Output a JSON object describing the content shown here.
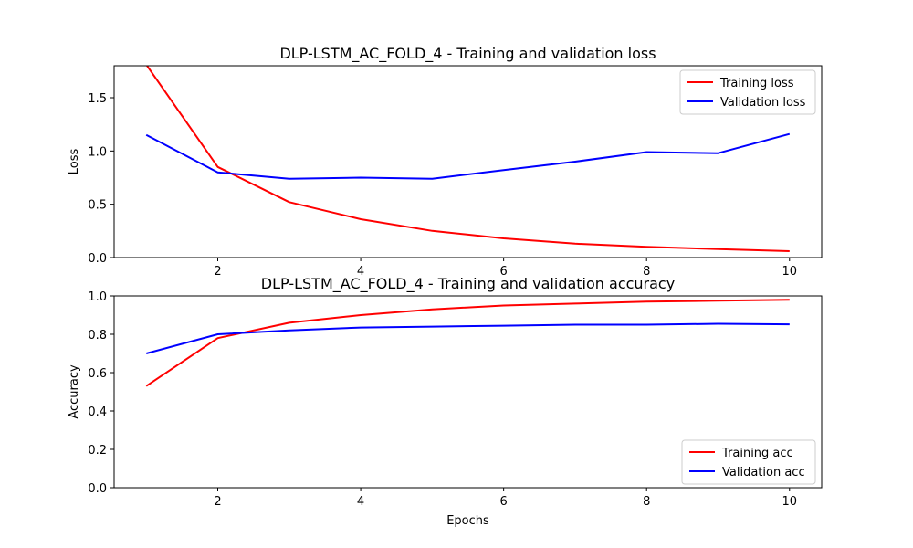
{
  "chart_data": [
    {
      "type": "line",
      "title": "DLP-LSTM_AC_FOLD_4 - Training and validation loss",
      "xlabel": "",
      "ylabel": "Loss",
      "x": [
        1,
        2,
        3,
        4,
        5,
        6,
        7,
        8,
        9,
        10
      ],
      "xlim": [
        0.55,
        10.45
      ],
      "ylim": [
        0,
        1.8
      ],
      "xticks": [
        2,
        4,
        6,
        8,
        10
      ],
      "yticks": [
        0.0,
        0.5,
        1.0,
        1.5
      ],
      "ytick_labels": [
        "0.0",
        "0.5",
        "1.0",
        "1.5"
      ],
      "xtick_labels": [
        "2",
        "4",
        "6",
        "8",
        "10"
      ],
      "legend_position": "top-right",
      "grid": false,
      "series": [
        {
          "name": "Training loss",
          "color": "#ff0000",
          "values": [
            1.81,
            0.85,
            0.52,
            0.36,
            0.25,
            0.18,
            0.13,
            0.1,
            0.08,
            0.06
          ]
        },
        {
          "name": "Validation loss",
          "color": "#0000ff",
          "values": [
            1.15,
            0.8,
            0.74,
            0.75,
            0.74,
            0.82,
            0.9,
            0.99,
            0.98,
            1.16
          ]
        }
      ]
    },
    {
      "type": "line",
      "title": "DLP-LSTM_AC_FOLD_4 - Training and validation accuracy",
      "xlabel": "Epochs",
      "ylabel": "Accuracy",
      "x": [
        1,
        2,
        3,
        4,
        5,
        6,
        7,
        8,
        9,
        10
      ],
      "xlim": [
        0.55,
        10.45
      ],
      "ylim": [
        0,
        1.0
      ],
      "xticks": [
        2,
        4,
        6,
        8,
        10
      ],
      "yticks": [
        0.0,
        0.2,
        0.4,
        0.6,
        0.8,
        1.0
      ],
      "ytick_labels": [
        "0.0",
        "0.2",
        "0.4",
        "0.6",
        "0.8",
        "1.0"
      ],
      "xtick_labels": [
        "2",
        "4",
        "6",
        "8",
        "10"
      ],
      "legend_position": "bottom-right",
      "grid": false,
      "series": [
        {
          "name": "Training acc",
          "color": "#ff0000",
          "values": [
            0.53,
            0.78,
            0.86,
            0.9,
            0.93,
            0.95,
            0.96,
            0.97,
            0.975,
            0.98
          ]
        },
        {
          "name": "Validation acc",
          "color": "#0000ff",
          "values": [
            0.7,
            0.8,
            0.82,
            0.835,
            0.84,
            0.845,
            0.85,
            0.85,
            0.855,
            0.852
          ]
        }
      ]
    }
  ]
}
